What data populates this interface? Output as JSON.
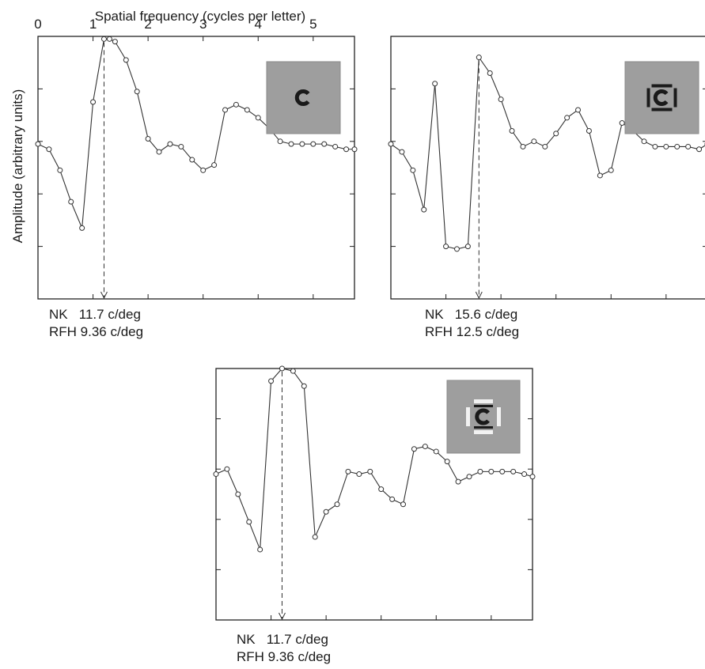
{
  "figure": {
    "top_axis_label": "Spatial frequency (cycles per letter)",
    "top_axis_ticks": [
      "0",
      "1",
      "2",
      "3",
      "4",
      "5"
    ],
    "y_axis_label": "Amplitude (arbitrary units)"
  },
  "chart_data": [
    {
      "type": "line",
      "panel": "top-left",
      "icon": "letter-c-alone",
      "xlabel": "Spatial frequency (cycles per letter)",
      "ylabel": "Amplitude (arbitrary units)",
      "xlim": [
        0,
        5.75
      ],
      "ylim": [
        0,
        5
      ],
      "x_ticks": [
        "0",
        "1",
        "2",
        "3",
        "4",
        "5"
      ],
      "series": [
        {
          "x": [
            0,
            0.2,
            0.4,
            0.6,
            0.8,
            1.0,
            1.2,
            1.3,
            1.4,
            1.6,
            1.8,
            2.0,
            2.2,
            2.4,
            2.6,
            2.8,
            3.0,
            3.2,
            3.4,
            3.6,
            3.8,
            4.0,
            4.2,
            4.4,
            4.6,
            4.8,
            5.0,
            5.2,
            5.4,
            5.6,
            5.75
          ],
          "values": [
            2.95,
            2.85,
            2.45,
            1.85,
            1.35,
            3.75,
            4.95,
            4.95,
            4.9,
            4.55,
            3.95,
            3.05,
            2.8,
            2.95,
            2.9,
            2.65,
            2.45,
            2.55,
            3.6,
            3.7,
            3.6,
            3.45,
            3.25,
            3.0,
            2.95,
            2.95,
            2.95,
            2.95,
            2.9,
            2.85,
            2.85
          ]
        }
      ],
      "arrow_x": 1.2,
      "annotation": [
        "NK   11.7 c/deg",
        "RFH 9.36 c/deg"
      ]
    },
    {
      "type": "line",
      "panel": "top-right",
      "icon": "letter-c-with-flankers",
      "xlabel": "Spatial frequency (cycles per letter)",
      "ylabel": "Amplitude (arbitrary units)",
      "xlim": [
        0,
        5.75
      ],
      "ylim": [
        0,
        5
      ],
      "series": [
        {
          "x": [
            0,
            0.2,
            0.4,
            0.6,
            0.8,
            1.0,
            1.2,
            1.4,
            1.6,
            1.8,
            2.0,
            2.2,
            2.4,
            2.6,
            2.8,
            3.0,
            3.2,
            3.4,
            3.6,
            3.8,
            4.0,
            4.2,
            4.4,
            4.6,
            4.8,
            5.0,
            5.2,
            5.4,
            5.6,
            5.75
          ],
          "values": [
            2.95,
            2.8,
            2.45,
            1.7,
            4.1,
            1.0,
            0.95,
            1.0,
            4.6,
            4.3,
            3.8,
            3.2,
            2.9,
            3.0,
            2.9,
            3.15,
            3.45,
            3.6,
            3.2,
            2.35,
            2.45,
            3.35,
            3.2,
            3.0,
            2.9,
            2.9,
            2.9,
            2.9,
            2.85,
            2.95
          ]
        }
      ],
      "arrow_x": 1.6,
      "annotation": [
        "NK   15.6 c/deg",
        "RFH 12.5 c/deg"
      ]
    },
    {
      "type": "line",
      "panel": "bottom-center",
      "icon": "letter-c-with-thin-flankers",
      "xlabel": "Spatial frequency (cycles per letter)",
      "ylabel": "Amplitude (arbitrary units)",
      "xlim": [
        0,
        5.75
      ],
      "ylim": [
        0,
        5
      ],
      "series": [
        {
          "x": [
            0,
            0.2,
            0.4,
            0.6,
            0.8,
            1.0,
            1.2,
            1.4,
            1.6,
            1.8,
            2.0,
            2.2,
            2.4,
            2.6,
            2.8,
            3.0,
            3.2,
            3.4,
            3.6,
            3.8,
            4.0,
            4.2,
            4.4,
            4.6,
            4.8,
            5.0,
            5.2,
            5.4,
            5.6,
            5.75
          ],
          "values": [
            2.9,
            3.0,
            2.5,
            1.95,
            1.4,
            4.75,
            5.0,
            4.95,
            4.65,
            1.65,
            2.15,
            2.3,
            2.95,
            2.9,
            2.95,
            2.6,
            2.4,
            2.3,
            3.4,
            3.45,
            3.35,
            3.15,
            2.75,
            2.85,
            2.95,
            2.95,
            2.95,
            2.95,
            2.9,
            2.85
          ]
        }
      ],
      "arrow_x": 1.2,
      "annotation": [
        "NK   11.7 c/deg",
        "RFH 9.36 c/deg"
      ]
    }
  ]
}
